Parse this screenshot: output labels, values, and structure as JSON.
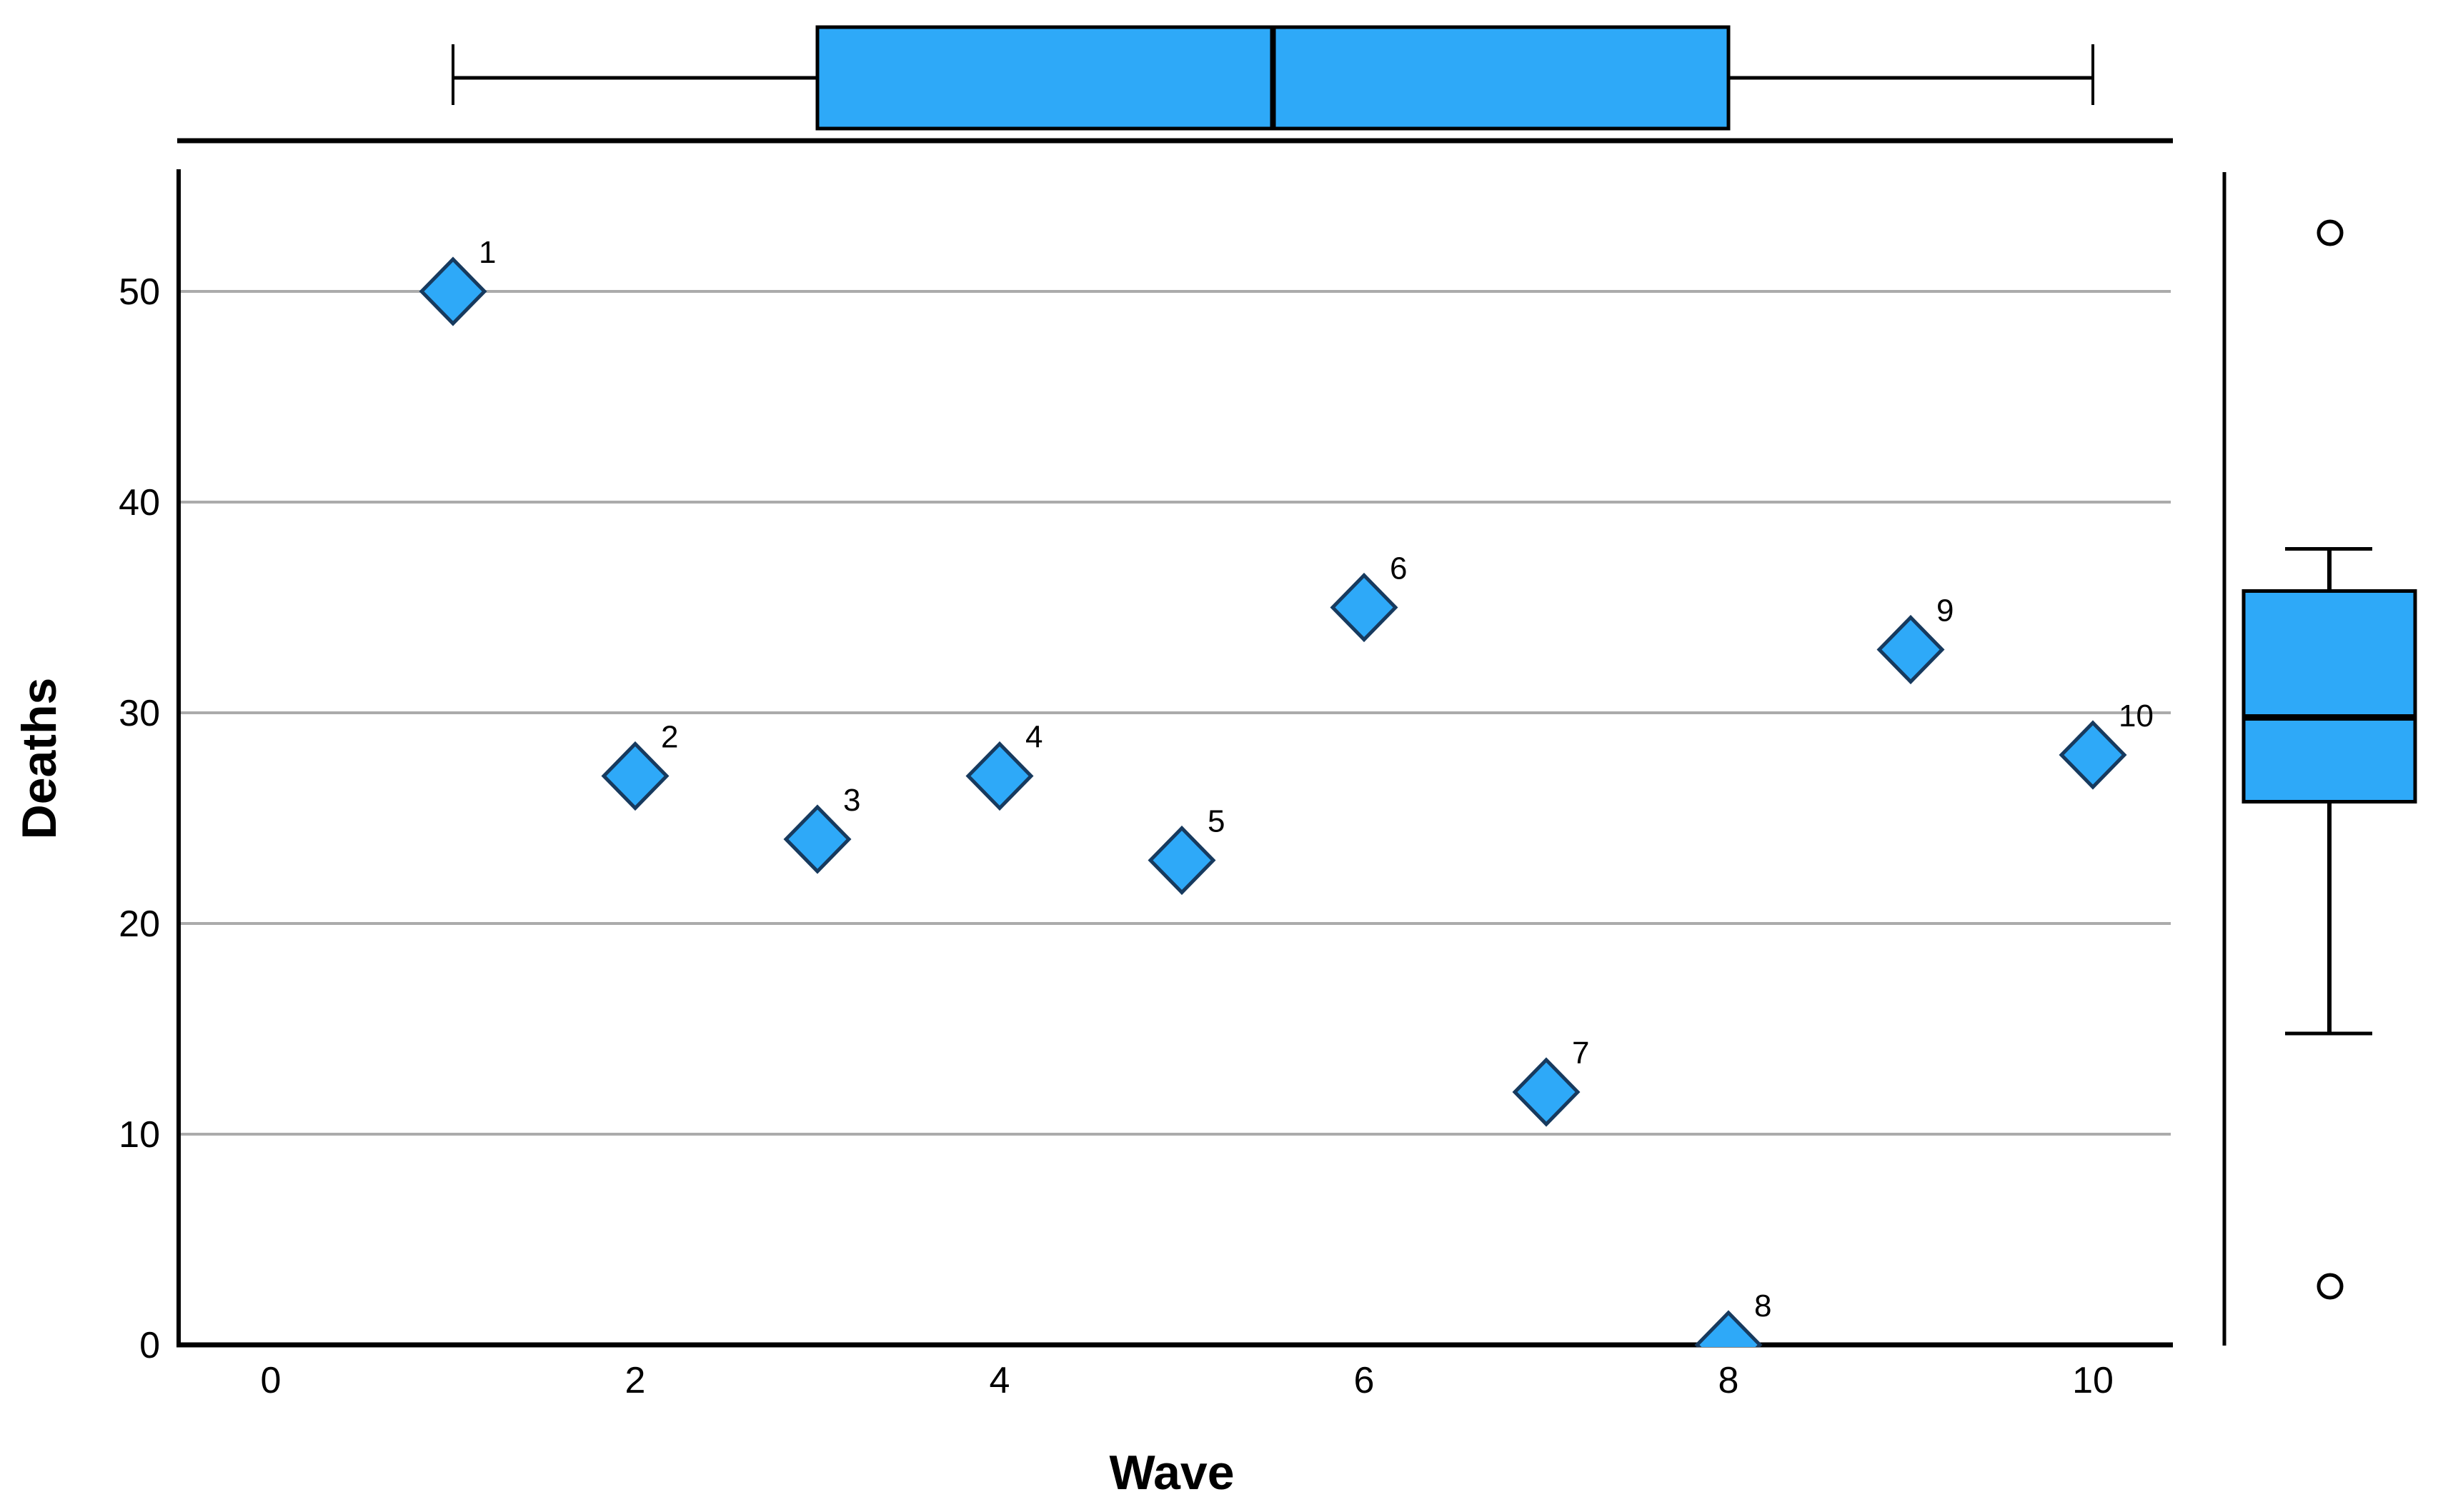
{
  "chart_data": {
    "type": "scatter",
    "title": "",
    "xlabel": "Wave",
    "ylabel": "Deaths",
    "x_ticks": [
      "0",
      "2",
      "4",
      "6",
      "8",
      "10"
    ],
    "x_tick_values": [
      0,
      2,
      4,
      6,
      8,
      10
    ],
    "y_ticks": [
      "0",
      "10",
      "20",
      "30",
      "40",
      "50"
    ],
    "y_tick_values": [
      0,
      10,
      20,
      30,
      40,
      50
    ],
    "xlim": [
      -0.5,
      10.45
    ],
    "ylim": [
      0,
      55.8
    ],
    "grid": "horizontal-only",
    "legend": "none",
    "points": [
      {
        "label": "1",
        "wave": 1,
        "deaths": 50
      },
      {
        "label": "2",
        "wave": 2,
        "deaths": 27
      },
      {
        "label": "3",
        "wave": 3,
        "deaths": 24
      },
      {
        "label": "4",
        "wave": 4,
        "deaths": 27
      },
      {
        "label": "5",
        "wave": 5,
        "deaths": 23
      },
      {
        "label": "6",
        "wave": 6,
        "deaths": 35
      },
      {
        "label": "7",
        "wave": 7,
        "deaths": 12
      },
      {
        "label": "8",
        "wave": 8,
        "deaths": 0
      },
      {
        "label": "9",
        "wave": 9,
        "deaths": 33
      },
      {
        "label": "10",
        "wave": 10,
        "deaths": 28
      }
    ],
    "marginal_boxplot_top": {
      "variable": "Wave",
      "orientation": "horizontal",
      "whisker_low": 1,
      "q1": 3,
      "median": 5.5,
      "q3": 8,
      "whisker_high": 10,
      "outliers": []
    },
    "marginal_boxplot_right": {
      "variable": "Deaths",
      "orientation": "vertical",
      "whisker_low": 12,
      "q1": 23,
      "median": 27,
      "q3": 33,
      "whisker_high": 35,
      "outliers": [
        0,
        50
      ]
    },
    "colors": {
      "marker_fill": "#2EA9F8",
      "marker_stroke": "#173A5E",
      "box_fill": "#2EA9F8",
      "box_stroke": "#000000",
      "gridline": "#ABABAB",
      "axis": "#000000",
      "text": "#000000",
      "background": "#FFFFFF"
    }
  }
}
